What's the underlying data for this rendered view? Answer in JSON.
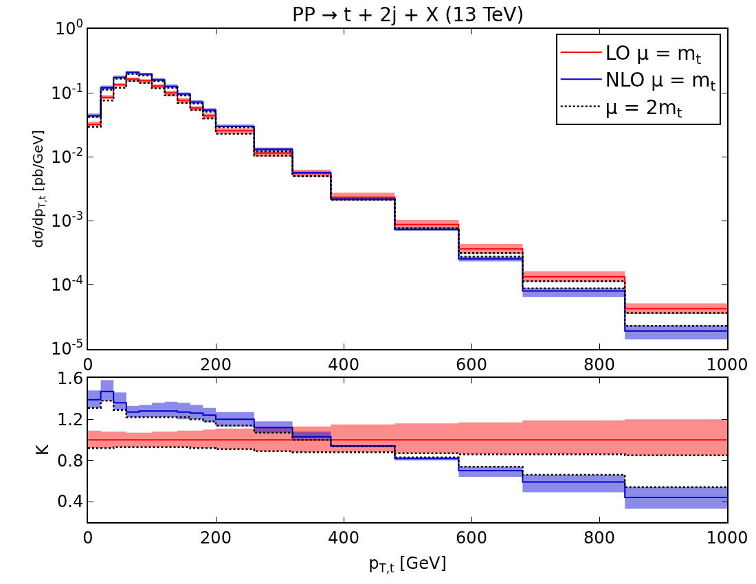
{
  "chart_data": [
    {
      "type": "step",
      "title": "PP → t + 2j + X (13 TeV)",
      "ylabel": "dσ/dp$_{T,t}$ [pb/GeV]",
      "log": true,
      "legend": "top right",
      "x": [
        0,
        20,
        40,
        60,
        80,
        100,
        120,
        140,
        160,
        180,
        200,
        260,
        320,
        380,
        480,
        580,
        680,
        840,
        1000
      ],
      "xlim": [
        0,
        1000
      ],
      "xticks": [
        0,
        200,
        400,
        600,
        800,
        1000
      ],
      "ylim": [
        1e-05,
        1
      ],
      "yticks": [
        {
          "value": 1,
          "label": "10$^{0}$"
        },
        {
          "value": 0.1,
          "label": "10$^{-1}$"
        },
        {
          "value": 0.01,
          "label": "10$^{-2}$"
        },
        {
          "value": 0.001,
          "label": "10$^{-3}$"
        },
        {
          "value": 0.0001,
          "label": "10$^{-4}$"
        },
        {
          "value": 1e-05,
          "label": "10$^{-5}$"
        }
      ],
      "series": [
        {
          "name": "LO μ = m$_{t}$",
          "color": "#ff0000",
          "line_style": "solid",
          "values": [
            0.032,
            0.085,
            0.134,
            0.164,
            0.155,
            0.128,
            0.1,
            0.076,
            0.058,
            0.044,
            0.0256,
            0.0115,
            0.0055,
            0.00234,
            0.00088,
            0.000366,
            0.000135,
            4.28e-05,
            4.28e-05
          ],
          "lower": [
            0.0307,
            0.08,
            0.125,
            0.15,
            0.141,
            0.118,
            0.088,
            0.069,
            0.053,
            0.039,
            0.023,
            0.0101,
            0.0049,
            0.00215,
            0.00077,
            0.000303,
            0.000112,
            3.53e-05,
            3.53e-05
          ],
          "upper": [
            0.0356,
            0.092,
            0.141,
            0.174,
            0.164,
            0.136,
            0.108,
            0.083,
            0.062,
            0.048,
            0.028,
            0.0122,
            0.0063,
            0.00276,
            0.00104,
            0.000439,
            0.000163,
            5.16e-05,
            5.16e-05
          ]
        },
        {
          "name": "NLO μ = m$_{t}$",
          "color": "#0000cc",
          "line_style": "solid",
          "values": [
            0.0439,
            0.12,
            0.174,
            0.21,
            0.197,
            0.16,
            0.126,
            0.096,
            0.072,
            0.054,
            0.03,
            0.0132,
            0.0057,
            0.0022,
            0.00074,
            0.000256,
            8.06e-05,
            1.91e-05,
            1.91e-05
          ],
          "lower": [
            0.0413,
            0.112,
            0.167,
            0.197,
            0.186,
            0.153,
            0.12,
            0.091,
            0.068,
            0.051,
            0.029,
            0.0122,
            0.0054,
            0.00206,
            0.0007,
            0.000233,
            6.5e-05,
            1.41e-05,
            1.41e-05
          ],
          "upper": [
            0.0476,
            0.13,
            0.186,
            0.219,
            0.205,
            0.171,
            0.136,
            0.102,
            0.077,
            0.058,
            0.032,
            0.014,
            0.0059,
            0.00229,
            0.00079,
            0.000278,
            8.95e-05,
            2.35e-05,
            2.35e-05
          ]
        },
        {
          "name": "μ = 2m$_{t}$",
          "color": "#000000",
          "line_style": "dotted",
          "values": [
            0.042,
            0.112,
            0.167,
            0.197,
            0.186,
            0.153,
            0.12,
            0.091,
            0.068,
            0.051,
            0.029,
            0.0122,
            0.005,
            0.00215,
            0.00077,
            0.000278,
            8.85e-05,
            2.3e-05,
            2.3e-05
          ]
        },
        {
          "color": "#000000",
          "line_style": "dotted",
          "values": [
            0.0295,
            0.076,
            0.12,
            0.153,
            0.143,
            0.118,
            0.092,
            0.07,
            0.054,
            0.04,
            0.023,
            0.0105,
            0.005,
            0.00215,
            0.00077,
            0.000315,
            0.000115,
            3.65e-05,
            3.65e-05
          ]
        }
      ]
    },
    {
      "type": "step",
      "xlabel": "p$_{T,t}$ [GeV]",
      "ylabel": "K",
      "x": [
        0,
        20,
        40,
        60,
        80,
        100,
        120,
        140,
        160,
        180,
        200,
        260,
        320,
        380,
        480,
        580,
        680,
        840,
        1000
      ],
      "xlim": [
        0,
        1000
      ],
      "xticks": [
        0,
        200,
        400,
        600,
        800,
        1000
      ],
      "ylim": [
        0.2,
        1.6
      ],
      "yticks": [
        0.4,
        0.8,
        1.2,
        1.6
      ],
      "series": [
        {
          "color": "#ff0000",
          "line_style": "solid",
          "values": [
            1,
            1,
            1,
            1,
            1,
            1,
            1,
            1,
            1,
            1,
            1,
            1,
            1,
            1,
            1,
            1,
            1,
            1,
            1
          ],
          "lower": [
            0.92,
            0.92,
            0.93,
            0.93,
            0.93,
            0.93,
            0.93,
            0.93,
            0.92,
            0.92,
            0.91,
            0.89,
            0.88,
            0.88,
            0.87,
            0.86,
            0.86,
            0.85,
            0.85
          ],
          "upper": [
            1.09,
            1.08,
            1.08,
            1.07,
            1.07,
            1.08,
            1.08,
            1.09,
            1.09,
            1.1,
            1.11,
            1.12,
            1.13,
            1.15,
            1.16,
            1.17,
            1.19,
            1.2,
            1.2
          ]
        },
        {
          "color": "#0000cc",
          "line_style": "solid",
          "values": [
            1.39,
            1.47,
            1.36,
            1.27,
            1.28,
            1.28,
            1.28,
            1.27,
            1.26,
            1.24,
            1.2,
            1.12,
            1.03,
            0.94,
            0.82,
            0.7,
            0.59,
            0.44,
            0.44
          ],
          "lower": [
            1.31,
            1.38,
            1.29,
            1.22,
            1.22,
            1.22,
            1.22,
            1.2,
            1.2,
            1.17,
            1.13,
            1.07,
            1.01,
            0.93,
            0.8,
            0.64,
            0.49,
            0.33,
            0.33
          ],
          "upper": [
            1.48,
            1.58,
            1.46,
            1.33,
            1.34,
            1.36,
            1.37,
            1.36,
            1.34,
            1.31,
            1.27,
            1.18,
            1.08,
            0.95,
            0.83,
            0.74,
            0.66,
            0.54,
            0.54
          ]
        },
        {
          "color": "#000000",
          "line_style": "dotted",
          "values": [
            1.31,
            1.38,
            1.29,
            1.22,
            1.22,
            1.22,
            1.22,
            1.22,
            1.2,
            1.18,
            1.14,
            1.07,
            1.0,
            0.94,
            0.83,
            0.74,
            0.66,
            0.54,
            0.54
          ]
        },
        {
          "color": "#000000",
          "line_style": "dotted",
          "values": [
            0.92,
            0.92,
            0.93,
            0.93,
            0.93,
            0.93,
            0.93,
            0.93,
            0.92,
            0.92,
            0.91,
            0.89,
            0.88,
            0.88,
            0.87,
            0.86,
            0.86,
            0.85,
            0.85
          ]
        }
      ]
    }
  ]
}
